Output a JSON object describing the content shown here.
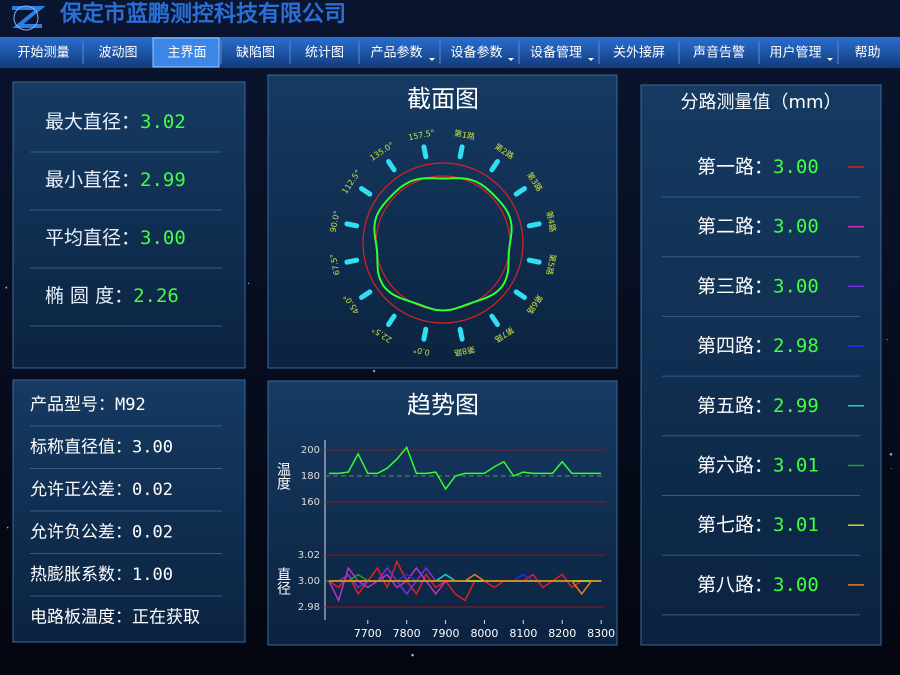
{
  "header": {
    "title": "保定市蓝鹏测控科技有限公司"
  },
  "menu": [
    {
      "label": "开始测量"
    },
    {
      "label": "波动图"
    },
    {
      "label": "主界面",
      "active": true
    },
    {
      "label": "缺陷图"
    },
    {
      "label": "统计图"
    },
    {
      "label": "产品参数",
      "dropdown": true
    },
    {
      "label": "设备参数",
      "dropdown": true
    },
    {
      "label": "设备管理",
      "dropdown": true
    },
    {
      "label": "关外接屏"
    },
    {
      "label": "声音告警"
    },
    {
      "label": "用户管理",
      "dropdown": true
    },
    {
      "label": "帮助"
    }
  ],
  "stats": [
    {
      "label": "最大直径：",
      "value": "3.02"
    },
    {
      "label": "最小直径：",
      "value": "2.99"
    },
    {
      "label": "平均直径：",
      "value": "3.00"
    },
    {
      "label": "椭 圆 度：",
      "value": "2.26"
    }
  ],
  "product": [
    {
      "label": "产品型号：",
      "value": "M92"
    },
    {
      "label": "标称直径值：",
      "value": "3.00"
    },
    {
      "label": "允许正公差：",
      "value": "0.02"
    },
    {
      "label": "允许负公差：",
      "value": "0.02"
    },
    {
      "label": "热膨胀系数：",
      "value": "1.00"
    },
    {
      "label": "电路板温度：",
      "value": "正在获取"
    }
  ],
  "section_chart": {
    "title": "截面图",
    "angle_labels": [
      "0.0°",
      "22.5°",
      "45.0°",
      "67.5°",
      "90.0°",
      "112.5°",
      "135.0°",
      "157.5°"
    ],
    "route_labels": [
      "第1路",
      "第2路",
      "第3路",
      "第4路",
      "第5路",
      "第6路",
      "第7路",
      "第8路"
    ]
  },
  "channels_title": "分路测量值（mm）",
  "trend_chart": {
    "type": "line",
    "title": "趋势图",
    "x": [
      7600,
      7625,
      7650,
      7675,
      7700,
      7725,
      7750,
      7775,
      7800,
      7825,
      7850,
      7875,
      7900,
      7925,
      7950,
      7975,
      8000,
      8025,
      8050,
      8075,
      8100,
      8125,
      8150,
      8175,
      8200,
      8225,
      8250,
      8275,
      8300
    ],
    "xlim": [
      7590,
      8310
    ],
    "xticks": [
      7700,
      7800,
      7900,
      8000,
      8100,
      8200,
      8300
    ],
    "temperature": {
      "label": "温度",
      "ylim": [
        150,
        210
      ],
      "yticks": [
        200,
        180,
        160
      ],
      "series": [
        {
          "color": "#30ff30",
          "values": [
            182,
            182,
            183,
            197,
            182,
            182,
            186,
            193,
            202,
            182,
            182,
            183,
            170,
            180,
            182,
            182,
            182,
            187,
            191,
            180,
            183,
            182,
            182,
            182,
            191,
            182,
            182,
            182,
            182
          ]
        }
      ]
    },
    "diameter": {
      "label": "直径",
      "ylim": [
        2.97,
        3.03
      ],
      "yticks": [
        3.02,
        {
          "value": 3.0,
          "label": "3.00"
        },
        2.98
      ],
      "series": [
        {
          "name": "第一路：",
          "current": "3.00",
          "color": "#e02020",
          "values": [
            3.0,
            2.995,
            3.005,
            2.99,
            3.0,
            3.01,
            2.995,
            3.015,
            3.0,
            2.99,
            3.005,
            2.995,
            3.0,
            2.99,
            2.985,
            3.0,
            3.0,
            2.995,
            3.0,
            3.0,
            3.0,
            3.005,
            2.995,
            3.0,
            3.005,
            2.995,
            3.0,
            3.0,
            3.0
          ]
        },
        {
          "name": "第二路：",
          "current": "3.00",
          "color": "#c030c0",
          "values": [
            3.0,
            2.985,
            3.01,
            3.0,
            2.995,
            3.0,
            3.005,
            2.995,
            3.0,
            3.01,
            3.0,
            2.99,
            3.0,
            3.0,
            3.0,
            3.0,
            3.0,
            3.0,
            3.0,
            3.0,
            3.0,
            3.0,
            3.0,
            3.0,
            3.0,
            3.0,
            3.0,
            3.0,
            3.0
          ]
        },
        {
          "name": "第三路：",
          "current": "3.00",
          "color": "#7030e0",
          "values": [
            3.0,
            3.0,
            3.005,
            2.995,
            3.0,
            3.0,
            3.01,
            3.0,
            2.99,
            3.0,
            3.01,
            3.0,
            3.0,
            3.0,
            3.0,
            3.0,
            3.0,
            3.0,
            3.0,
            3.0,
            3.0,
            3.0,
            3.0,
            3.0,
            3.0,
            3.0,
            3.0,
            3.0,
            3.0
          ]
        },
        {
          "name": "第四路：",
          "current": "2.98",
          "color": "#2030e0",
          "values": [
            3.0,
            3.0,
            3.0,
            3.0,
            3.0,
            3.0,
            3.0,
            3.0,
            3.005,
            3.0,
            3.0,
            3.0,
            3.0,
            3.0,
            3.0,
            3.0,
            3.0,
            3.0,
            3.0,
            3.0,
            3.005,
            3.0,
            3.0,
            3.0,
            3.0,
            3.0,
            3.0,
            3.0,
            3.0
          ]
        },
        {
          "name": "第五路：",
          "current": "2.99",
          "color": "#20d0d0",
          "values": [
            3.0,
            3.0,
            3.0,
            3.0,
            3.0,
            3.0,
            3.0,
            3.0,
            3.0,
            3.0,
            3.0,
            3.0,
            3.005,
            3.0,
            3.0,
            3.0,
            3.0,
            3.0,
            3.0,
            3.0,
            3.0,
            3.0,
            3.0,
            3.0,
            3.0,
            3.0,
            3.0,
            3.0,
            3.0
          ]
        },
        {
          "name": "第六路：",
          "current": "3.01",
          "color": "#20a020",
          "values": [
            3.0,
            3.0,
            3.0,
            3.005,
            3.0,
            3.0,
            3.0,
            3.0,
            3.0,
            3.0,
            3.0,
            3.0,
            3.0,
            3.0,
            3.0,
            3.0,
            3.0,
            3.0,
            3.0,
            3.0,
            3.0,
            3.0,
            3.0,
            3.0,
            3.0,
            3.0,
            3.0,
            3.0,
            3.0
          ]
        },
        {
          "name": "第七路：",
          "current": "3.01",
          "color": "#d0d020",
          "values": [
            3.0,
            3.0,
            3.0,
            3.0,
            3.0,
            3.0,
            3.0,
            3.0,
            3.0,
            3.0,
            3.0,
            3.0,
            3.0,
            3.0,
            3.0,
            3.0,
            3.0,
            3.0,
            3.0,
            3.0,
            3.0,
            3.0,
            3.0,
            3.0,
            3.0,
            3.0,
            3.0,
            3.0,
            3.0
          ]
        },
        {
          "name": "第八路：",
          "current": "3.00",
          "color": "#e08020",
          "values": [
            3.0,
            3.0,
            3.0,
            3.0,
            3.0,
            3.0,
            3.0,
            3.0,
            3.0,
            3.0,
            3.0,
            3.0,
            3.0,
            3.0,
            3.0,
            3.005,
            3.0,
            3.0,
            3.0,
            3.0,
            3.0,
            3.0,
            3.0,
            3.0,
            3.0,
            3.0,
            2.99,
            3.0,
            3.0
          ]
        }
      ]
    }
  }
}
